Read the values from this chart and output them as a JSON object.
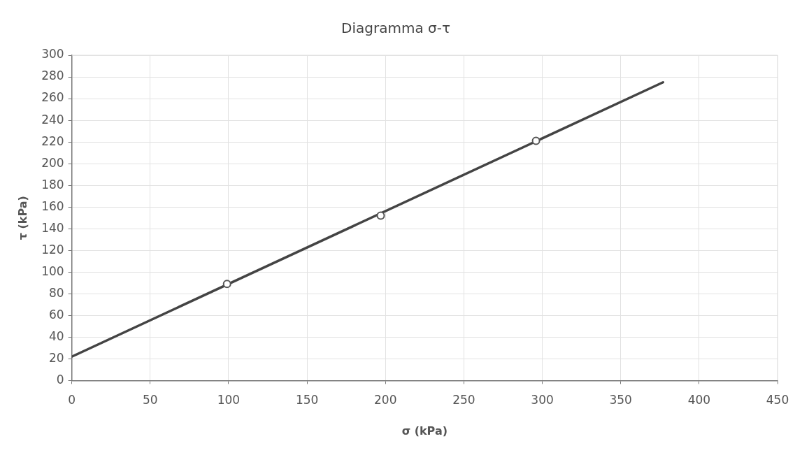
{
  "chart_data": {
    "type": "scatter",
    "title": "Diagramma σ-τ",
    "xlabel": "σ (kPa)",
    "ylabel": "τ (kPa)",
    "xlim": [
      0,
      450
    ],
    "xticks": [
      0,
      50,
      100,
      150,
      200,
      250,
      300,
      350,
      400,
      450
    ],
    "ylim": [
      0,
      300
    ],
    "yticks": [
      0,
      20,
      40,
      60,
      80,
      100,
      120,
      140,
      160,
      180,
      200,
      220,
      240,
      260,
      280,
      300
    ],
    "grid": true,
    "marker": "circle",
    "series": [
      {
        "type": "line",
        "color": "#444444",
        "x": [
          0,
          377
        ],
        "values": [
          22,
          275
        ],
        "marker": "none"
      },
      {
        "color": "#555555",
        "x": [
          99,
          197,
          296
        ],
        "values": [
          89,
          152,
          221
        ]
      }
    ]
  }
}
